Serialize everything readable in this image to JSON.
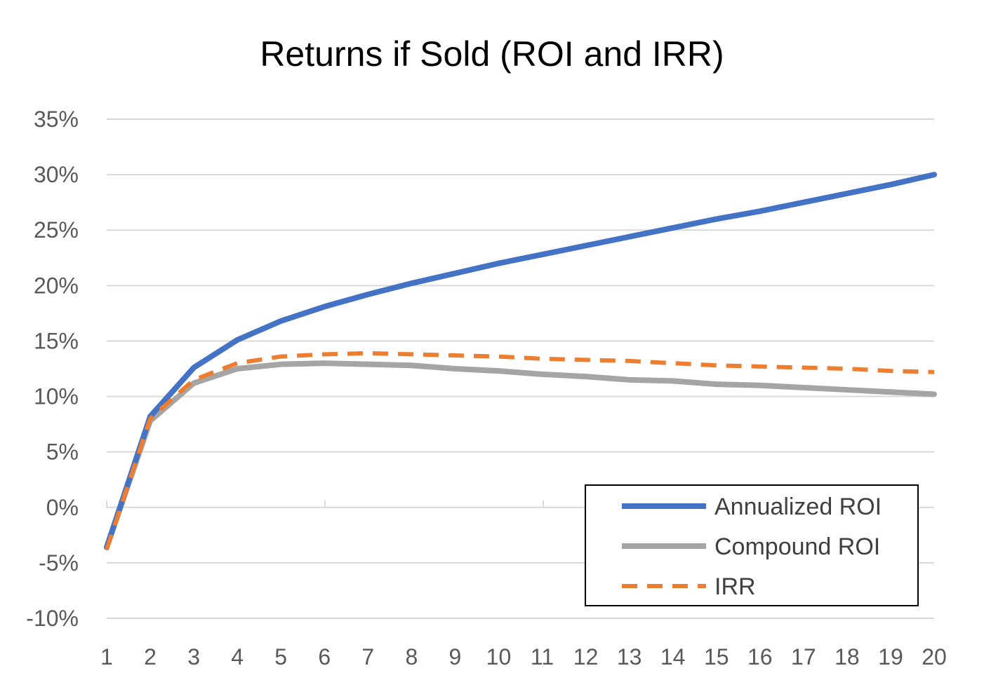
{
  "chart_data": {
    "type": "line",
    "title": "Returns if Sold (ROI and IRR)",
    "xlabel": "",
    "ylabel": "",
    "x": [
      1,
      2,
      3,
      4,
      5,
      6,
      7,
      8,
      9,
      10,
      11,
      12,
      13,
      14,
      15,
      16,
      17,
      18,
      19,
      20
    ],
    "x_tick_labels": [
      "1",
      "2",
      "3",
      "4",
      "5",
      "6",
      "7",
      "8",
      "9",
      "10",
      "11",
      "12",
      "13",
      "14",
      "15",
      "16",
      "17",
      "18",
      "19",
      "20"
    ],
    "ylim": [
      -10,
      35
    ],
    "y_ticks": [
      -10,
      -5,
      0,
      5,
      10,
      15,
      20,
      25,
      30,
      35
    ],
    "y_tick_labels": [
      "-10%",
      "-5%",
      "0%",
      "5%",
      "10%",
      "15%",
      "20%",
      "25%",
      "30%",
      "35%"
    ],
    "grid": true,
    "legend_position": "bottom-right",
    "series": [
      {
        "name": "Annualized ROI",
        "color": "#4472c4",
        "dash": "solid",
        "values": [
          -3.6,
          8.2,
          12.6,
          15.1,
          16.8,
          18.1,
          19.2,
          20.2,
          21.1,
          22.0,
          22.8,
          23.6,
          24.4,
          25.2,
          26.0,
          26.7,
          27.5,
          28.3,
          29.1,
          30.0
        ]
      },
      {
        "name": "Compound ROI",
        "color": "#a5a5a5",
        "dash": "solid",
        "values": [
          -3.6,
          7.8,
          11.2,
          12.5,
          12.9,
          13.0,
          12.9,
          12.8,
          12.5,
          12.3,
          12.0,
          11.8,
          11.5,
          11.4,
          11.1,
          11.0,
          10.8,
          10.6,
          10.4,
          10.2
        ]
      },
      {
        "name": "IRR",
        "color": "#ed7d31",
        "dash": "dashed",
        "values": [
          -3.8,
          8.0,
          11.5,
          13.0,
          13.6,
          13.8,
          13.9,
          13.8,
          13.7,
          13.6,
          13.4,
          13.3,
          13.2,
          13.0,
          12.8,
          12.7,
          12.6,
          12.5,
          12.3,
          12.2
        ]
      }
    ]
  }
}
